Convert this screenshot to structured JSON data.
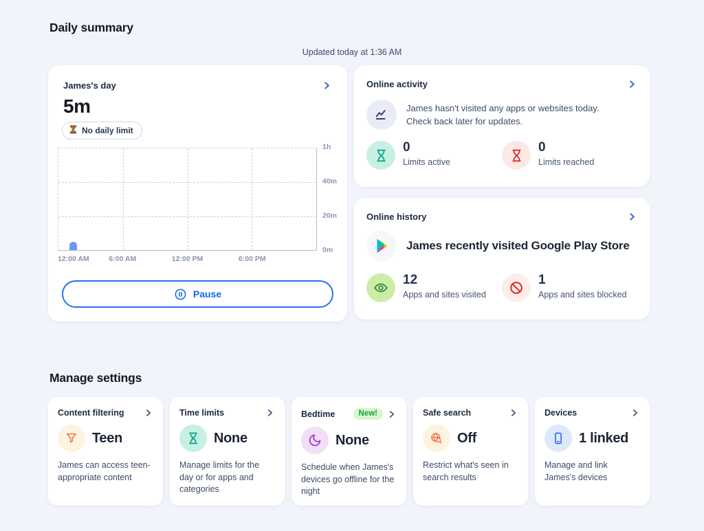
{
  "page": {
    "title": "Daily summary",
    "updated_text": "Updated today at 1:36 AM",
    "manage_heading": "Manage settings"
  },
  "day_card": {
    "title": "James's day",
    "total_time": "5m",
    "limit_badge": "No daily limit",
    "pause_label": "Pause",
    "chart_data": {
      "type": "bar",
      "title": "James's screen time by hour of day",
      "x_ticks": [
        "12:00 AM",
        "6:00 AM",
        "12:00 PM",
        "6:00 PM"
      ],
      "y_ticks": [
        "1h",
        "40m",
        "20m",
        "0m"
      ],
      "xlim_hours": [
        0,
        24
      ],
      "ylim_minutes": [
        0,
        60
      ],
      "bars": [
        {
          "start_hour": 1,
          "minutes": 5
        }
      ],
      "bar_color": "#6b96f4",
      "grid": "dashed"
    }
  },
  "online_activity": {
    "title": "Online activity",
    "message_line1": "James hasn't visited any apps or websites today.",
    "message_line2": "Check back later for updates.",
    "stats": [
      {
        "value": "0",
        "label": "Limits active"
      },
      {
        "value": "0",
        "label": "Limits reached"
      }
    ]
  },
  "online_history": {
    "title": "Online history",
    "headline": "James recently visited Google Play Store",
    "stats": [
      {
        "value": "12",
        "label": "Apps and sites visited"
      },
      {
        "value": "1",
        "label": "Apps and sites blocked"
      }
    ]
  },
  "settings_cards": [
    {
      "title": "Content filtering",
      "value": "Teen",
      "description": "James can access teen-appropriate content"
    },
    {
      "title": "Time limits",
      "value": "None",
      "description": "Manage limits for the day or for apps and categories"
    },
    {
      "title": "Bedtime",
      "badge": "New!",
      "value": "None",
      "description": "Schedule when James's devices go offline for the night"
    },
    {
      "title": "Safe search",
      "value": "Off",
      "description": "Restrict what's seen in search results"
    },
    {
      "title": "Devices",
      "value": "1 linked",
      "description": "Manage and link James's devices"
    }
  ],
  "colors": {
    "accent_blue": "#1f6bf2",
    "bar_blue": "#6b96f4",
    "teal": "#0ba186",
    "red": "#e02220",
    "green": "#2e8b3a",
    "orange": "#f2754b",
    "purple": "#9a2fd6",
    "device_blue": "#2d6ef5",
    "new_badge_green": "#17a23c"
  }
}
